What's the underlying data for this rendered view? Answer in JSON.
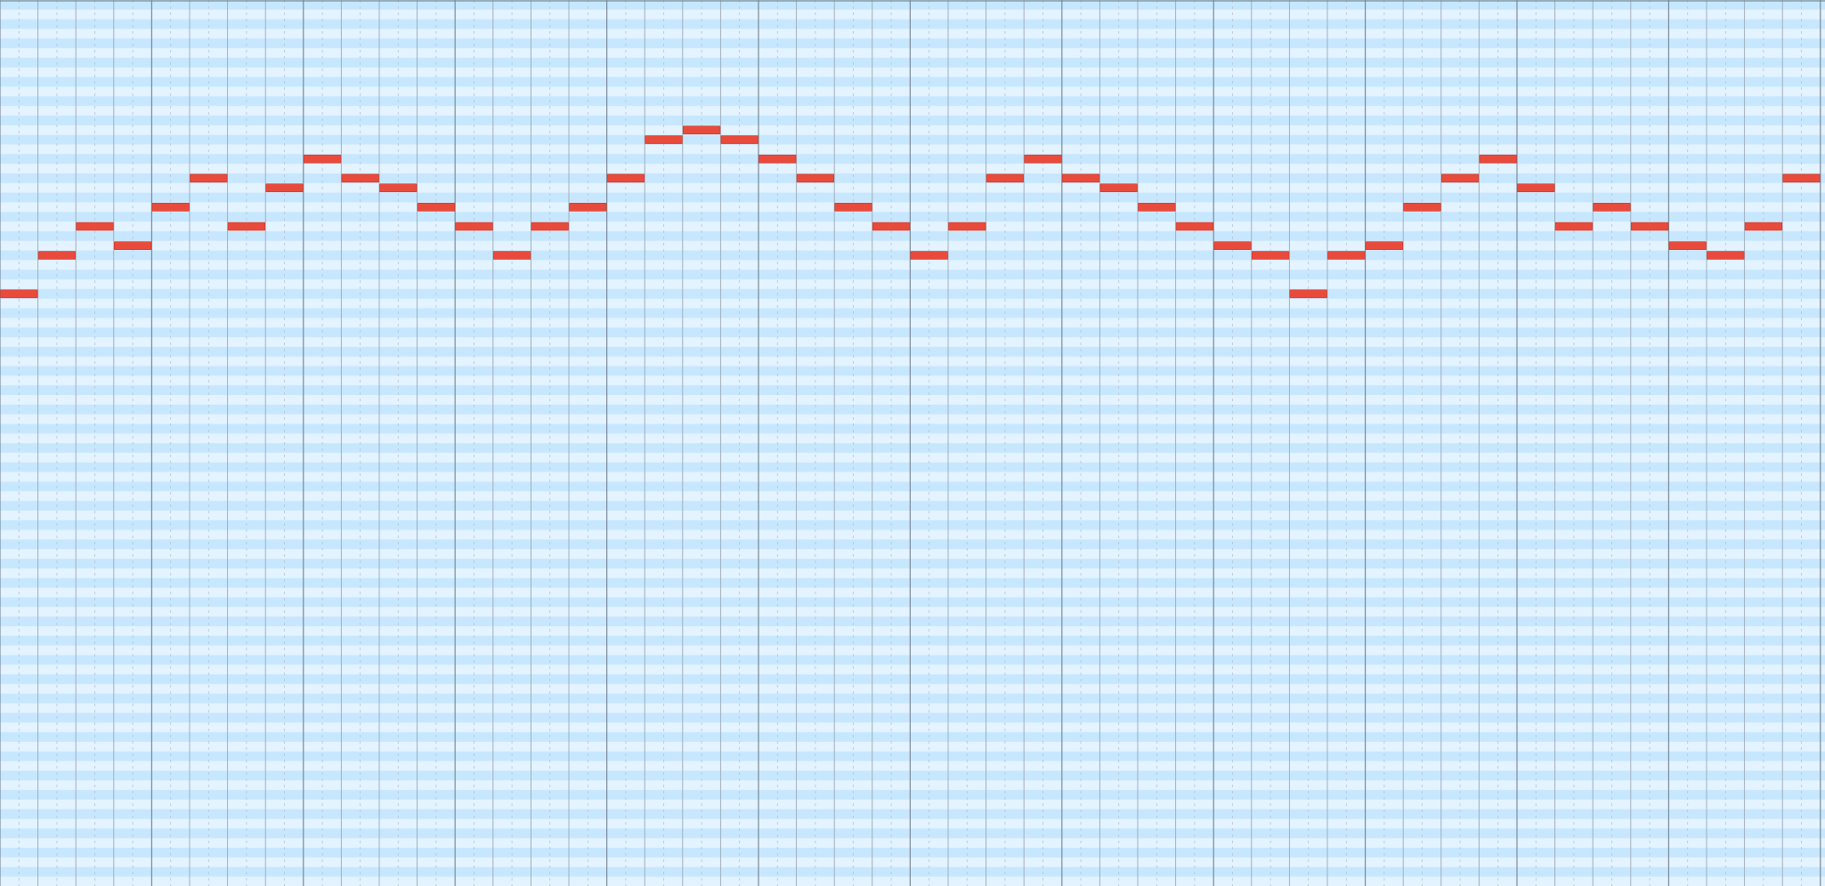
{
  "piano_roll": {
    "grid": {
      "measures": 16,
      "beats_per_measure": 4,
      "subdivisions_per_beat": 2,
      "visible_pitch_rows": 92,
      "top_row_index": 0
    },
    "colors": {
      "row_light": "#e3f3ff",
      "row_dark": "#c7e7ff",
      "measure_line": "#7a8a99",
      "beat_line": "#9aa9b5",
      "sub_line": "#b7c4ce",
      "note_fill": "#e84b3c",
      "note_stroke": "#c7362a"
    },
    "note_unit": "eighth",
    "notes": [
      {
        "start": 0,
        "duration": 1,
        "row": 30
      },
      {
        "start": 1,
        "duration": 1,
        "row": 26
      },
      {
        "start": 2,
        "duration": 1,
        "row": 23
      },
      {
        "start": 3,
        "duration": 1,
        "row": 25
      },
      {
        "start": 4,
        "duration": 1,
        "row": 21
      },
      {
        "start": 5,
        "duration": 1,
        "row": 18
      },
      {
        "start": 6,
        "duration": 1,
        "row": 23
      },
      {
        "start": 7,
        "duration": 1,
        "row": 19
      },
      {
        "start": 8,
        "duration": 1,
        "row": 16
      },
      {
        "start": 9,
        "duration": 1,
        "row": 18
      },
      {
        "start": 10,
        "duration": 1,
        "row": 19
      },
      {
        "start": 11,
        "duration": 1,
        "row": 21
      },
      {
        "start": 12,
        "duration": 1,
        "row": 23
      },
      {
        "start": 13,
        "duration": 1,
        "row": 26
      },
      {
        "start": 14,
        "duration": 1,
        "row": 23
      },
      {
        "start": 15,
        "duration": 1,
        "row": 21
      },
      {
        "start": 16,
        "duration": 1,
        "row": 18
      },
      {
        "start": 17,
        "duration": 1,
        "row": 14
      },
      {
        "start": 18,
        "duration": 1,
        "row": 13
      },
      {
        "start": 19,
        "duration": 1,
        "row": 14
      },
      {
        "start": 20,
        "duration": 1,
        "row": 16
      },
      {
        "start": 21,
        "duration": 1,
        "row": 18
      },
      {
        "start": 22,
        "duration": 1,
        "row": 21
      },
      {
        "start": 23,
        "duration": 1,
        "row": 23
      },
      {
        "start": 24,
        "duration": 1,
        "row": 26
      },
      {
        "start": 25,
        "duration": 1,
        "row": 23
      },
      {
        "start": 26,
        "duration": 1,
        "row": 18
      },
      {
        "start": 27,
        "duration": 1,
        "row": 16
      },
      {
        "start": 28,
        "duration": 1,
        "row": 18
      },
      {
        "start": 29,
        "duration": 1,
        "row": 19
      },
      {
        "start": 30,
        "duration": 1,
        "row": 21
      },
      {
        "start": 31,
        "duration": 1,
        "row": 23
      },
      {
        "start": 32,
        "duration": 1,
        "row": 25
      },
      {
        "start": 33,
        "duration": 1,
        "row": 26
      },
      {
        "start": 34,
        "duration": 1,
        "row": 30
      },
      {
        "start": 35,
        "duration": 1,
        "row": 26
      },
      {
        "start": 36,
        "duration": 1,
        "row": 25
      },
      {
        "start": 37,
        "duration": 1,
        "row": 21
      },
      {
        "start": 38,
        "duration": 1,
        "row": 18
      },
      {
        "start": 39,
        "duration": 1,
        "row": 16
      },
      {
        "start": 40,
        "duration": 1,
        "row": 19
      },
      {
        "start": 41,
        "duration": 1,
        "row": 23
      },
      {
        "start": 42,
        "duration": 1,
        "row": 21
      },
      {
        "start": 43,
        "duration": 1,
        "row": 23
      },
      {
        "start": 44,
        "duration": 1,
        "row": 25
      },
      {
        "start": 45,
        "duration": 1,
        "row": 26
      },
      {
        "start": 46,
        "duration": 1,
        "row": 23
      },
      {
        "start": 47,
        "duration": 1,
        "row": 18
      }
    ]
  }
}
